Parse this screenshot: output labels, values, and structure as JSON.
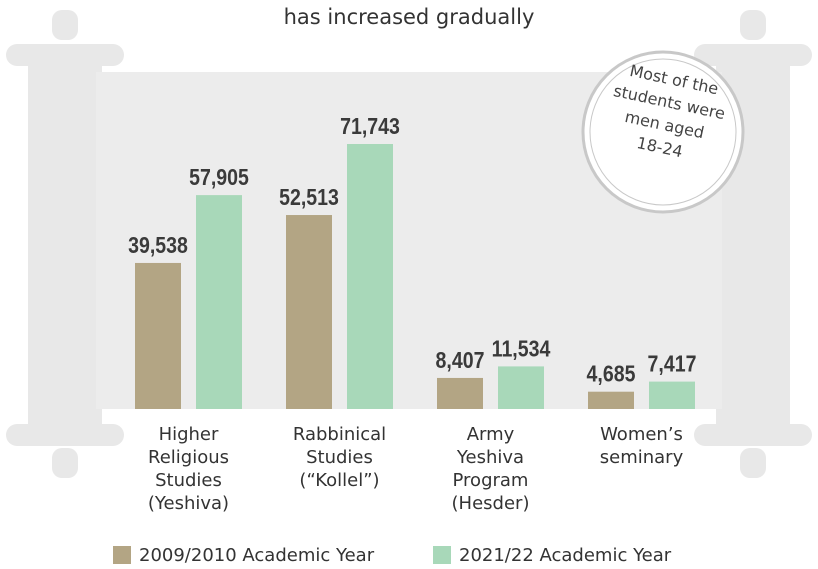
{
  "chart_data": {
    "type": "bar",
    "title": "has increased gradually",
    "categories": [
      "Higher\nReligious\nStudies\n(Yeshiva)",
      "Rabbinical\nStudies\n(“Kollel”)",
      "Army\nYeshiva\nProgram\n(Hesder)",
      "Women’s\nseminary"
    ],
    "series": [
      {
        "name": "2009/2010 Academic Year",
        "color": "#b3a584",
        "values": [
          39538,
          52513,
          8407,
          4685
        ],
        "value_labels": [
          "39,538",
          "52,513",
          "8,407",
          "4,685"
        ]
      },
      {
        "name": "2021/22 Academic Year",
        "color": "#a8d8b9",
        "values": [
          57905,
          71743,
          11534,
          7417
        ],
        "value_labels": [
          "57,905",
          "71,743",
          "11,534",
          "7,417"
        ]
      }
    ],
    "annotation": [
      "Most of the",
      "students were",
      "men aged",
      "18-24"
    ]
  }
}
